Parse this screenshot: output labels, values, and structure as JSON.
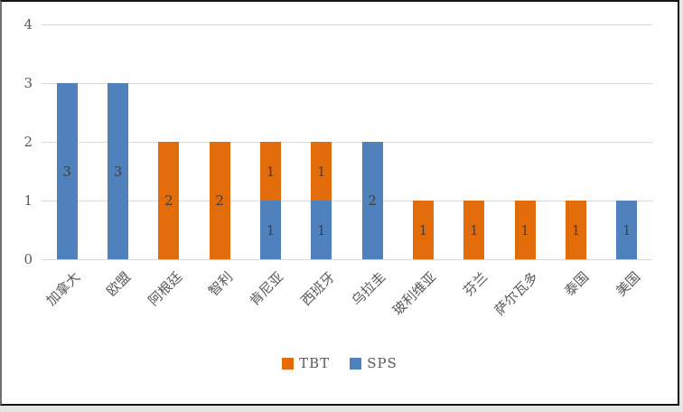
{
  "window": {
    "background": "#ffffff",
    "outer_background": "#e4e4e4",
    "frame_border_color": "#151515"
  },
  "chart_data": {
    "type": "bar",
    "stacked": true,
    "title": "",
    "xlabel": "",
    "ylabel": "",
    "categories": [
      "加拿大",
      "欧盟",
      "阿根廷",
      "智利",
      "肯尼亚",
      "西班牙",
      "乌拉圭",
      "玻利维亚",
      "芬兰",
      "萨尔瓦多",
      "泰国",
      "美国"
    ],
    "series": [
      {
        "name": "TBT",
        "color": "#E36C0A",
        "values": [
          0,
          0,
          2,
          2,
          1,
          1,
          0,
          1,
          1,
          1,
          1,
          0
        ]
      },
      {
        "name": "SPS",
        "color": "#4F81BD",
        "values": [
          3,
          3,
          0,
          0,
          1,
          1,
          2,
          0,
          0,
          0,
          0,
          1
        ]
      }
    ],
    "stack_order": [
      "SPS",
      "TBT"
    ],
    "totals": [
      3,
      3,
      2,
      2,
      2,
      2,
      2,
      1,
      1,
      1,
      1,
      1
    ],
    "ylim": [
      0,
      4
    ],
    "yticks": [
      "0",
      "1",
      "2",
      "3",
      "4"
    ],
    "grid": true,
    "data_labels": true,
    "data_label_color": "#404040",
    "gridline_color": "#d9d9d9",
    "axis_text_color": "#595959",
    "legend_position": "bottom"
  },
  "legend": {
    "items": [
      {
        "label": "TBT",
        "color": "#E36C0A"
      },
      {
        "label": "SPS",
        "color": "#4F81BD"
      }
    ]
  }
}
